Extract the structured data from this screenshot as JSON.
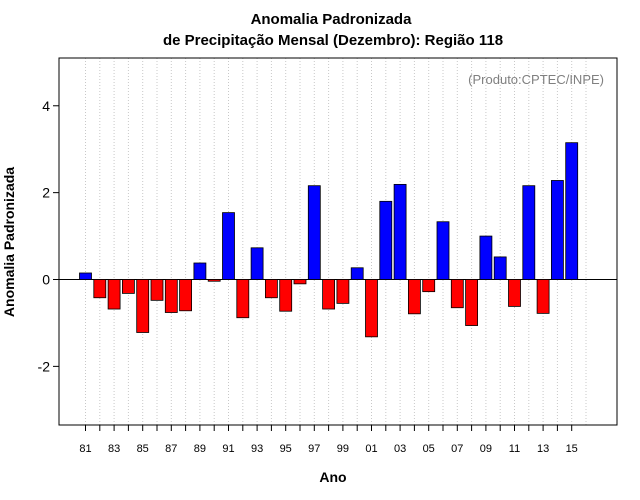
{
  "chart_data": {
    "type": "bar",
    "title": "Anomalia Padronizada",
    "subtitle": "de Precipitação Mensal (Dezembro): Região 118",
    "xlabel": "Ano",
    "ylabel": "Anomalia Padronizada",
    "annotation": "(Produto:CPTEC/INPE)",
    "ylim": [
      -3.35,
      5.1
    ],
    "yticks": [
      -2,
      0,
      2,
      4
    ],
    "grid": "vertical-dotted",
    "positive_color": "#0000ff",
    "negative_color": "#ff0000",
    "categories": [
      "81",
      "82",
      "83",
      "84",
      "85",
      "86",
      "87",
      "88",
      "89",
      "90",
      "91",
      "92",
      "93",
      "94",
      "95",
      "96",
      "97",
      "98",
      "99",
      "00",
      "01",
      "02",
      "03",
      "04",
      "05",
      "06",
      "07",
      "08",
      "09",
      "10",
      "11",
      "12",
      "13",
      "14",
      "15"
    ],
    "xtick_labels": [
      "81",
      "83",
      "85",
      "87",
      "89",
      "91",
      "93",
      "95",
      "97",
      "99",
      "01",
      "03",
      "05",
      "07",
      "09",
      "11",
      "13",
      "15"
    ],
    "values": [
      0.15,
      -0.42,
      -0.68,
      -0.32,
      -1.22,
      -0.48,
      -0.76,
      -0.72,
      0.38,
      -0.04,
      1.54,
      -0.88,
      0.73,
      -0.42,
      -0.73,
      -0.1,
      2.16,
      -0.68,
      -0.55,
      0.27,
      -1.32,
      1.8,
      2.19,
      -0.79,
      -0.28,
      1.33,
      -0.65,
      -1.06,
      1.0,
      0.52,
      -0.62,
      2.16,
      -0.78,
      2.28,
      3.15
    ]
  }
}
